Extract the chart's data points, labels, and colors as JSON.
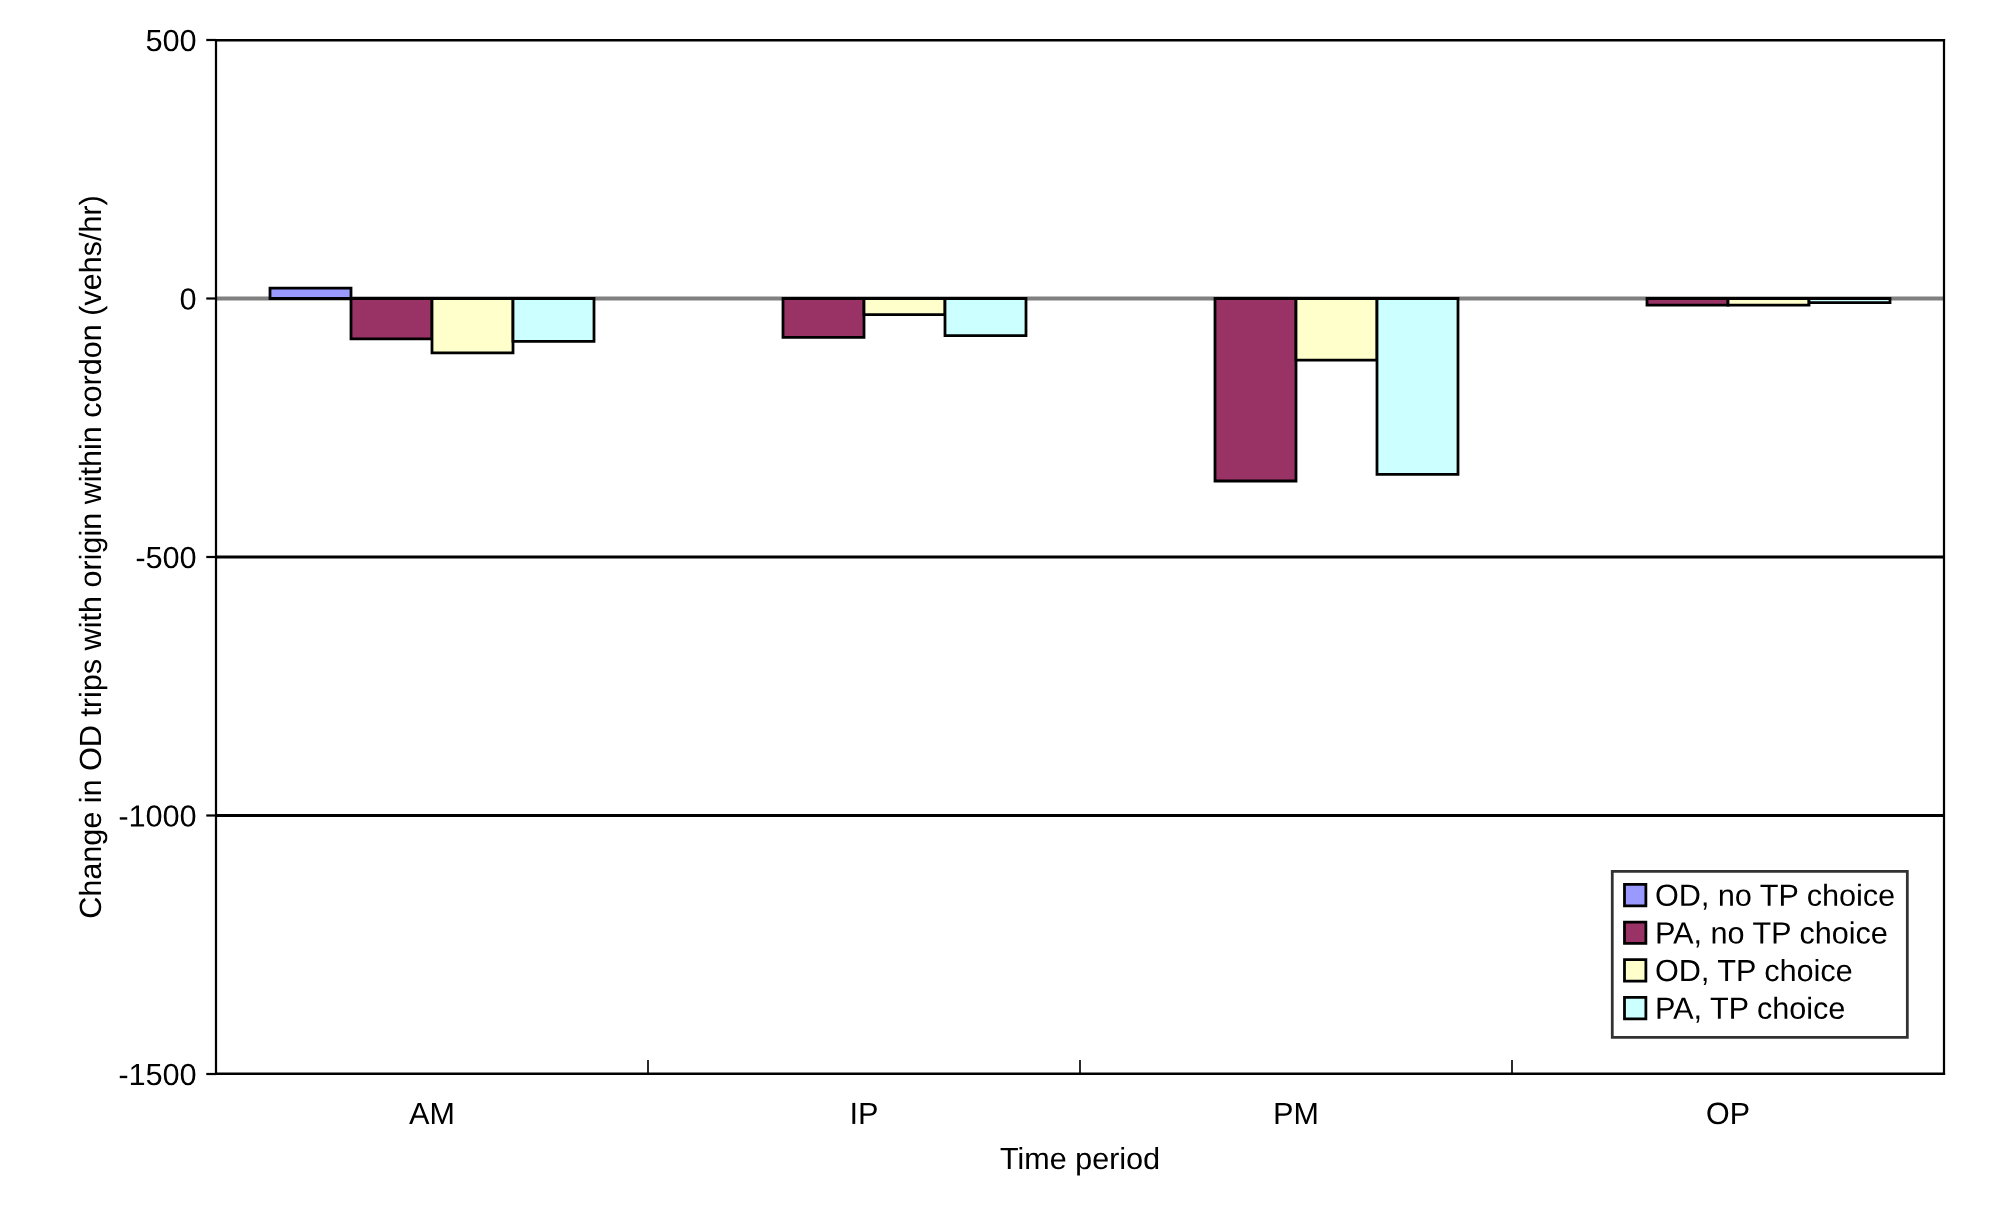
{
  "chart_data": {
    "type": "bar",
    "xlabel": "Time period",
    "ylabel": "Change in OD trips with origin within cordon (vehs/hr)",
    "categories": [
      "AM",
      "IP",
      "PM",
      "OP"
    ],
    "series": [
      {
        "name": "OD, no TP choice",
        "color": "#9999ff",
        "values": [
          20,
          null,
          null,
          null
        ]
      },
      {
        "name": "PA, no TP choice",
        "color": "#993366",
        "values": [
          -78,
          -75,
          -353,
          -13
        ]
      },
      {
        "name": "OD, TP choice",
        "color": "#ffffcc",
        "values": [
          -105,
          -31,
          -119,
          -13
        ]
      },
      {
        "name": "PA, TP choice",
        "color": "#ccffff",
        "values": [
          -83,
          -72,
          -340,
          -8
        ]
      }
    ],
    "ylim": [
      -1500,
      500
    ],
    "yticks": [
      -1500,
      -1000,
      -500,
      0,
      500
    ],
    "grid": "y",
    "legend": "lower right"
  }
}
